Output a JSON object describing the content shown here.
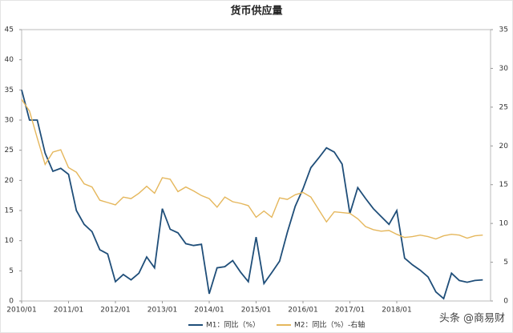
{
  "chart_data": {
    "type": "line",
    "title": "货币供应量",
    "categories": [
      "2010/01",
      null,
      null,
      null,
      null,
      null,
      "2011/01",
      null,
      null,
      null,
      null,
      null,
      "2012/01",
      null,
      null,
      null,
      null,
      null,
      "2013/01",
      null,
      null,
      null,
      null,
      null,
      "2014/01",
      null,
      null,
      null,
      null,
      null,
      "2015/01",
      null,
      null,
      null,
      null,
      null,
      "2016/01",
      null,
      null,
      null,
      null,
      null,
      "2017/01",
      null,
      null,
      null,
      null,
      null,
      "2018/01",
      null,
      null,
      null,
      null,
      null,
      null,
      null,
      null,
      null,
      null,
      null
    ],
    "series": [
      {
        "name": "M1：同比（%）",
        "color": "#1f4e79",
        "axis": "y",
        "values": [
          35,
          30,
          30,
          24.5,
          21.5,
          22,
          21,
          15,
          12.7,
          11.5,
          8.5,
          7.8,
          3.2,
          4.4,
          3.5,
          4.6,
          7.3,
          5.5,
          15.3,
          11.9,
          11.3,
          9.5,
          9.2,
          9.4,
          1.2,
          5.5,
          5.7,
          6.7,
          4.8,
          3.2,
          10.6,
          2.9,
          4.7,
          6.6,
          11.4,
          15.7,
          18.6,
          22.1,
          23.7,
          25.4,
          24.7,
          22.7,
          14.5,
          18.8,
          17,
          15.3,
          14,
          12.7,
          15,
          7.1,
          6,
          5.1,
          4,
          1.5,
          0.4,
          4.6,
          3.4,
          3.1,
          3.4,
          3.5
        ]
      },
      {
        "name": "M2：同比（%）-右轴",
        "color": "#e5b75c",
        "axis": "y2",
        "values": [
          26,
          24.5,
          21,
          17.6,
          19.2,
          19.5,
          17.2,
          16.6,
          15.1,
          14.7,
          13,
          12.7,
          12.4,
          13.4,
          13.2,
          13.9,
          14.8,
          13.9,
          15.9,
          15.7,
          14.1,
          14.7,
          14.2,
          13.6,
          13.2,
          12.1,
          13.4,
          12.8,
          12.6,
          12.3,
          10.8,
          11.6,
          10.8,
          13.3,
          13.1,
          13.7,
          14,
          13.4,
          11.8,
          10.2,
          11.5,
          11.4,
          11.3,
          10.6,
          9.6,
          9.2,
          9,
          9.1,
          8.6,
          8.2,
          8.3,
          8.5,
          8.3,
          8,
          8.4,
          8.6,
          8.5,
          8.1,
          8.4,
          8.5
        ]
      }
    ],
    "ylim": [
      0,
      45
    ],
    "yticks": [
      0,
      5,
      10,
      15,
      20,
      25,
      30,
      35,
      40,
      45
    ],
    "y2lim": [
      0,
      35
    ],
    "y2ticks": [
      0,
      5,
      10,
      15,
      20,
      25,
      30,
      35
    ],
    "legend": "bottom",
    "watermark": "头条 @商易财"
  }
}
